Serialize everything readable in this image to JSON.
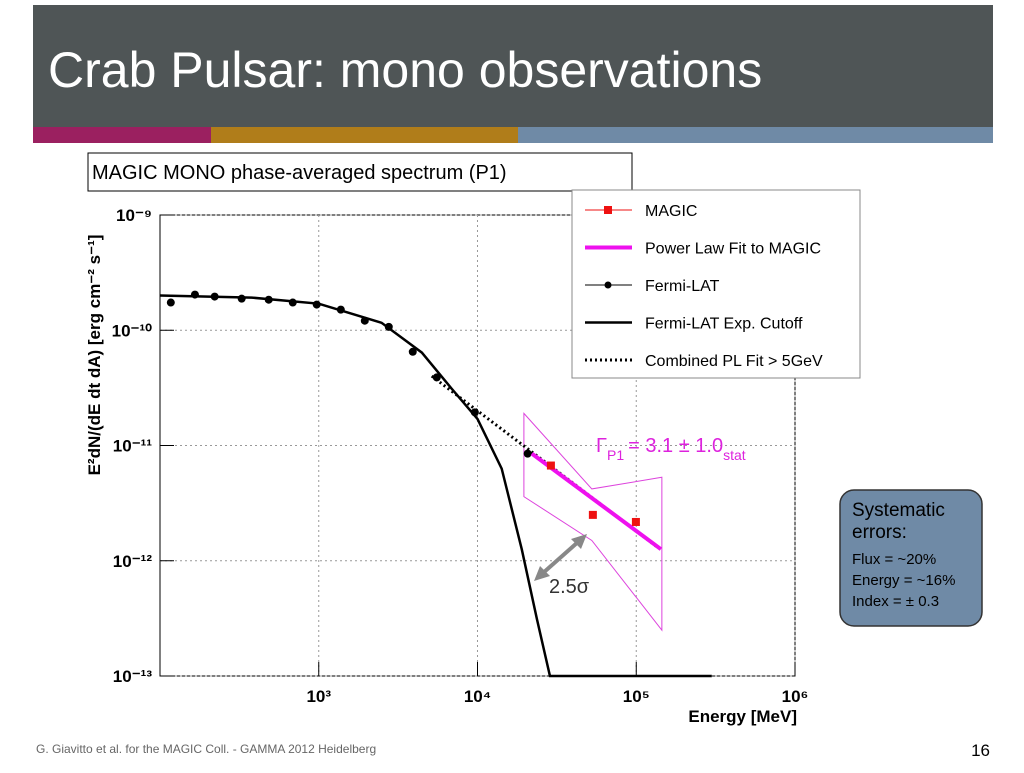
{
  "slide": {
    "title": "Crab Pulsar: mono observations",
    "footer": "G. Giavitto et al. for the MAGIC Coll. - GAMMA 2012 Heidelberg",
    "page_number": "16"
  },
  "chart_data": {
    "type": "line",
    "title": "MAGIC MONO phase-averaged spectrum (P1)",
    "x_label": "Energy [MeV]",
    "y_label": "E²dN/(dE dt dA) [erg cm⁻² s⁻¹]",
    "xscale": "log",
    "yscale": "log",
    "grid": true,
    "legend": "upper right",
    "xlim": [
      100,
      1000000
    ],
    "ylim": [
      1e-13,
      1e-09
    ],
    "xticks": [
      {
        "value": 1000,
        "label": "10³"
      },
      {
        "value": 10000,
        "label": "10⁴"
      },
      {
        "value": 100000,
        "label": "10⁵"
      },
      {
        "value": 1000000,
        "label": "10⁶"
      }
    ],
    "yticks": [
      {
        "value": 1e-09,
        "label": "10⁻⁹"
      },
      {
        "value": 1e-10,
        "label": "10⁻¹⁰"
      },
      {
        "value": 1e-11,
        "label": "10⁻¹¹"
      },
      {
        "value": 1e-12,
        "label": "10⁻¹²"
      },
      {
        "value": 1e-13,
        "label": "10⁻¹³"
      }
    ],
    "series": [
      {
        "name": "MAGIC",
        "color": "#ee1111",
        "style": "square",
        "x": [
          29000,
          53300,
          99500
        ],
        "values": [
          6.7e-12,
          2.5e-12,
          2.17e-12
        ]
      },
      {
        "name": "Power Law Fit to MAGIC",
        "color": "#ee11ee",
        "style": "thick",
        "x": [
          22000,
          143000
        ],
        "values": [
          8.5e-12,
          1.26e-12
        ]
      },
      {
        "name": "Fermi-LAT",
        "color": "#000000",
        "style": "circle",
        "x": [
          117,
          166,
          221,
          327,
          484,
          686,
          971,
          1377,
          1950,
          2762,
          3910,
          5540,
          9620,
          20700
        ],
        "values": [
          1.74e-10,
          2.04e-10,
          1.96e-10,
          1.88e-10,
          1.84e-10,
          1.74e-10,
          1.67e-10,
          1.51e-10,
          1.21e-10,
          1.07e-10,
          6.5e-11,
          3.9e-11,
          1.94e-11,
          8.5e-12
        ]
      },
      {
        "name": "Fermi-LAT Exp. Cutoff",
        "color": "#000000",
        "style": "solid",
        "x": [
          100,
          378,
          1000,
          2490,
          4460,
          6890,
          10000,
          14200,
          19000,
          23700,
          28600,
          299000
        ],
        "values": [
          2e-10,
          1.92e-10,
          1.7e-10,
          1.16e-10,
          6.4e-11,
          3.1e-11,
          1.7e-11,
          6.3e-12,
          1.26e-12,
          3.1e-13,
          1e-13,
          1e-13
        ]
      },
      {
        "name": "Combined PL Fit > 5GeV",
        "color": "#000000",
        "style": "dotted",
        "x": [
          5150,
          137000
        ],
        "values": [
          4e-11,
          1.3e-12
        ]
      }
    ],
    "fit_band": {
      "color": "#dd44dd",
      "x": [
        19600,
        52500,
        145000
      ],
      "upper": [
        1.9e-11,
        4.2e-12,
        5.3e-12
      ],
      "lower": [
        3.6e-12,
        1.5e-12,
        2.5e-13
      ]
    },
    "annotations": {
      "index_symbol": "Γ",
      "index_subscript": "P1",
      "index_value": "= 3.1 ± 1.0",
      "index_error_subscript": "stat",
      "significance": "2.5σ",
      "systematics_title": "Systematic errors:",
      "systematics": [
        "Flux = ~20%",
        "Energy = ~16%",
        "Index = ± 0.3"
      ]
    }
  }
}
